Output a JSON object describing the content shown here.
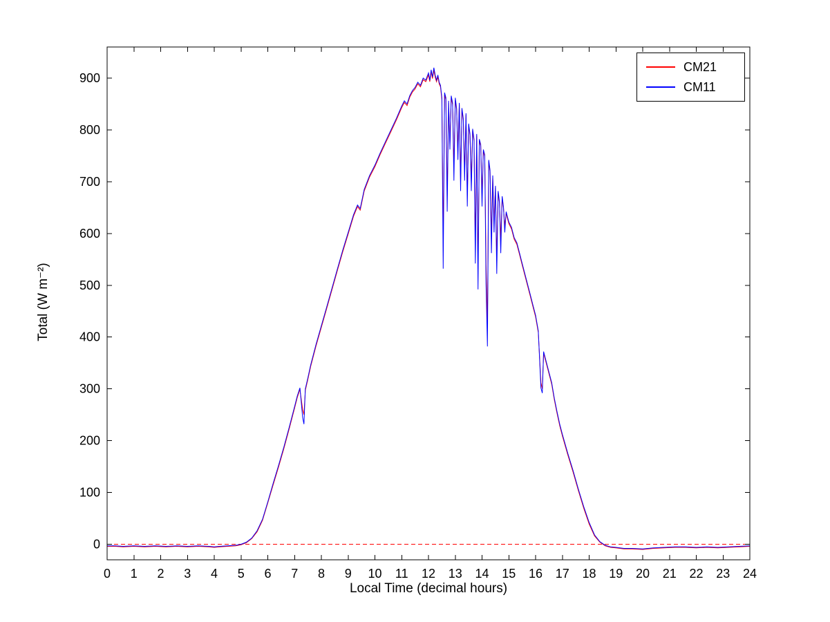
{
  "figure": {
    "background": "#ffffff"
  },
  "chart_data": {
    "type": "line",
    "title": "",
    "xlabel": "Local Time (decimal hours)",
    "ylabel": "Total (W m⁻²)",
    "xlim": [
      0,
      24
    ],
    "ylim": [
      -30,
      960
    ],
    "xticks": [
      0,
      1,
      2,
      3,
      4,
      5,
      6,
      7,
      8,
      9,
      10,
      11,
      12,
      13,
      14,
      15,
      16,
      17,
      18,
      19,
      20,
      21,
      22,
      23,
      24
    ],
    "yticks": [
      0,
      100,
      200,
      300,
      400,
      500,
      600,
      700,
      800,
      900
    ],
    "grid": false,
    "legend": {
      "position": "top-right"
    },
    "zero_line": {
      "y": 0,
      "color": "#ff0000",
      "style": "dashed"
    },
    "series": [
      {
        "name": "CM21",
        "color": "#ff0000",
        "col": 1
      },
      {
        "name": "CM11",
        "color": "#0000ff",
        "col": 2
      }
    ],
    "points": [
      [
        0,
        -4,
        -3
      ],
      [
        0.3,
        -4,
        -3
      ],
      [
        0.6,
        -5,
        -4
      ],
      [
        1,
        -4,
        -3
      ],
      [
        1.4,
        -5,
        -4
      ],
      [
        1.8,
        -4,
        -3
      ],
      [
        2.2,
        -5,
        -4
      ],
      [
        2.6,
        -4,
        -3
      ],
      [
        3,
        -5,
        -4
      ],
      [
        3.4,
        -4,
        -3
      ],
      [
        3.8,
        -5,
        -4
      ],
      [
        4,
        -6,
        -5
      ],
      [
        4.2,
        -5,
        -4
      ],
      [
        4.5,
        -4,
        -3
      ],
      [
        4.8,
        -3,
        -2
      ],
      [
        5,
        -1,
        0
      ],
      [
        5.2,
        3,
        4
      ],
      [
        5.4,
        11,
        12
      ],
      [
        5.6,
        24,
        26
      ],
      [
        5.8,
        46,
        48
      ],
      [
        6,
        80,
        82
      ],
      [
        6.2,
        115,
        118
      ],
      [
        6.4,
        149,
        152
      ],
      [
        6.6,
        185,
        188
      ],
      [
        6.8,
        223,
        226
      ],
      [
        7,
        263,
        266
      ],
      [
        7.1,
        283,
        286
      ],
      [
        7.2,
        299,
        302
      ],
      [
        7.3,
        260,
        245
      ],
      [
        7.35,
        250,
        232
      ],
      [
        7.4,
        297,
        300
      ],
      [
        7.5,
        319,
        322
      ],
      [
        7.6,
        343,
        346
      ],
      [
        7.8,
        383,
        386
      ],
      [
        8,
        419,
        422
      ],
      [
        8.2,
        455,
        458
      ],
      [
        8.4,
        492,
        495
      ],
      [
        8.6,
        529,
        532
      ],
      [
        8.8,
        565,
        568
      ],
      [
        9,
        599,
        602
      ],
      [
        9.2,
        633,
        636
      ],
      [
        9.35,
        652,
        655
      ],
      [
        9.45,
        645,
        648
      ],
      [
        9.6,
        682,
        685
      ],
      [
        9.8,
        709,
        712
      ],
      [
        10,
        729,
        732
      ],
      [
        10.2,
        753,
        756
      ],
      [
        10.4,
        775,
        778
      ],
      [
        10.6,
        797,
        800
      ],
      [
        10.8,
        819,
        822
      ],
      [
        11,
        843,
        846
      ],
      [
        11.1,
        853,
        856
      ],
      [
        11.2,
        847,
        850
      ],
      [
        11.3,
        863,
        866
      ],
      [
        11.4,
        873,
        876
      ],
      [
        11.5,
        879,
        882
      ],
      [
        11.6,
        889,
        892
      ],
      [
        11.7,
        883,
        886
      ],
      [
        11.8,
        897,
        900
      ],
      [
        11.9,
        893,
        896
      ],
      [
        12,
        906,
        910
      ],
      [
        12.05,
        893,
        896
      ],
      [
        12.1,
        912,
        916
      ],
      [
        12.15,
        899,
        902
      ],
      [
        12.2,
        915,
        920
      ],
      [
        12.25,
        902,
        906
      ],
      [
        12.3,
        893,
        896
      ],
      [
        12.35,
        902,
        906
      ],
      [
        12.4,
        889,
        892
      ],
      [
        12.45,
        883,
        886
      ],
      [
        12.5,
        858,
        862
      ],
      [
        12.55,
        588,
        532
      ],
      [
        12.6,
        868,
        872
      ],
      [
        12.65,
        858,
        862
      ],
      [
        12.7,
        672,
        642
      ],
      [
        12.75,
        852,
        856
      ],
      [
        12.8,
        772,
        762
      ],
      [
        12.85,
        862,
        866
      ],
      [
        12.9,
        849,
        852
      ],
      [
        12.95,
        730,
        702
      ],
      [
        13,
        858,
        862
      ],
      [
        13.05,
        839,
        842
      ],
      [
        13.1,
        760,
        742
      ],
      [
        13.15,
        849,
        852
      ],
      [
        13.2,
        700,
        682
      ],
      [
        13.25,
        839,
        842
      ],
      [
        13.3,
        819,
        822
      ],
      [
        13.35,
        720,
        702
      ],
      [
        13.4,
        829,
        832
      ],
      [
        13.45,
        672,
        652
      ],
      [
        13.5,
        809,
        812
      ],
      [
        13.55,
        789,
        792
      ],
      [
        13.6,
        700,
        682
      ],
      [
        13.65,
        799,
        802
      ],
      [
        13.7,
        779,
        782
      ],
      [
        13.75,
        580,
        542
      ],
      [
        13.8,
        789,
        792
      ],
      [
        13.85,
        532,
        492
      ],
      [
        13.9,
        779,
        782
      ],
      [
        13.95,
        769,
        772
      ],
      [
        14,
        672,
        652
      ],
      [
        14.05,
        759,
        762
      ],
      [
        14.1,
        749,
        752
      ],
      [
        14.15,
        540,
        502
      ],
      [
        14.2,
        422,
        382
      ],
      [
        14.25,
        739,
        742
      ],
      [
        14.3,
        719,
        722
      ],
      [
        14.35,
        592,
        562
      ],
      [
        14.4,
        709,
        712
      ],
      [
        14.45,
        622,
        602
      ],
      [
        14.5,
        689,
        692
      ],
      [
        14.55,
        552,
        522
      ],
      [
        14.6,
        679,
        682
      ],
      [
        14.65,
        659,
        662
      ],
      [
        14.7,
        590,
        562
      ],
      [
        14.75,
        669,
        672
      ],
      [
        14.8,
        649,
        652
      ],
      [
        14.85,
        615,
        602
      ],
      [
        14.9,
        639,
        642
      ],
      [
        14.95,
        629,
        632
      ],
      [
        15,
        619,
        622
      ],
      [
        15.1,
        609,
        612
      ],
      [
        15.2,
        589,
        592
      ],
      [
        15.3,
        579,
        582
      ],
      [
        15.4,
        559,
        562
      ],
      [
        15.5,
        539,
        542
      ],
      [
        15.6,
        519,
        522
      ],
      [
        15.7,
        499,
        502
      ],
      [
        15.8,
        479,
        482
      ],
      [
        15.9,
        459,
        462
      ],
      [
        16,
        439,
        442
      ],
      [
        16.1,
        409,
        412
      ],
      [
        16.2,
        312,
        302
      ],
      [
        16.25,
        300,
        292
      ],
      [
        16.3,
        369,
        372
      ],
      [
        16.4,
        349,
        352
      ],
      [
        16.5,
        329,
        332
      ],
      [
        16.6,
        309,
        312
      ],
      [
        16.7,
        279,
        282
      ],
      [
        16.8,
        253,
        256
      ],
      [
        16.9,
        229,
        232
      ],
      [
        17,
        209,
        212
      ],
      [
        17.2,
        173,
        176
      ],
      [
        17.4,
        139,
        142
      ],
      [
        17.6,
        103,
        106
      ],
      [
        17.8,
        69,
        72
      ],
      [
        18,
        39,
        42
      ],
      [
        18.2,
        16,
        18
      ],
      [
        18.4,
        4,
        5
      ],
      [
        18.6,
        -3,
        -2
      ],
      [
        18.8,
        -6,
        -5
      ],
      [
        19,
        -7,
        -6
      ],
      [
        19.3,
        -9,
        -8
      ],
      [
        19.6,
        -9,
        -8
      ],
      [
        20,
        -10,
        -9
      ],
      [
        20.4,
        -8,
        -7
      ],
      [
        20.8,
        -7,
        -6
      ],
      [
        21.2,
        -6,
        -5
      ],
      [
        21.6,
        -6,
        -5
      ],
      [
        22,
        -7,
        -6
      ],
      [
        22.4,
        -6,
        -5
      ],
      [
        22.8,
        -7,
        -6
      ],
      [
        23.2,
        -6,
        -5
      ],
      [
        23.6,
        -5,
        -4
      ],
      [
        24,
        -4,
        -3
      ]
    ]
  }
}
